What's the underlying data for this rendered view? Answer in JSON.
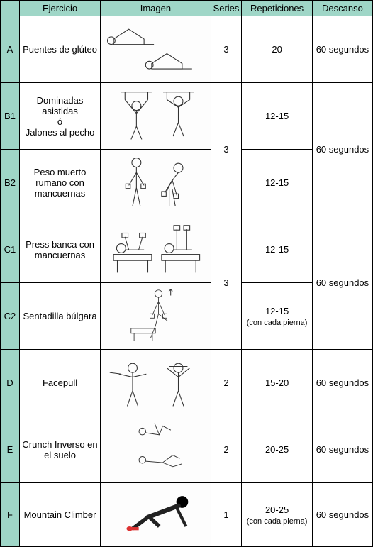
{
  "headers": {
    "letter": "",
    "exercise": "Ejercicio",
    "image": "Imagen",
    "series": "Series",
    "reps": "Repeticiones",
    "rest": "Descanso"
  },
  "colors": {
    "header_bg": "#9fd6c7",
    "border": "#000000",
    "text": "#000000",
    "page_bg": "#ffffff"
  },
  "font": {
    "family": "Arial",
    "size_pt": 10
  },
  "rows": [
    {
      "letter": "A",
      "exercise": "Puentes de glúteo",
      "series": "3",
      "reps": "20",
      "rest": "60 segundos",
      "group_start": false
    },
    {
      "letter": "B1",
      "exercise": "Dominadas asistidas\nó\nJalones al pecho",
      "series": "3",
      "reps": "12-15",
      "rest": "60 segundos",
      "group_start": true,
      "group_span": 2
    },
    {
      "letter": "B2",
      "exercise": "Peso muerto rumano con mancuernas",
      "series": "",
      "reps": "12-15",
      "rest": "",
      "group_start": false,
      "in_group": true
    },
    {
      "letter": "C1",
      "exercise": "Press banca con mancuernas",
      "series": "3",
      "reps": "12-15",
      "rest": "60 segundos",
      "group_start": true,
      "group_span": 2
    },
    {
      "letter": "C2",
      "exercise": "Sentadilla búlgara",
      "series": "",
      "reps": "12-15\n(con cada pierna)",
      "rest": "",
      "group_start": false,
      "in_group": true
    },
    {
      "letter": "D",
      "exercise": "Facepull",
      "series": "2",
      "reps": "15-20",
      "rest": "60 segundos",
      "group_start": false
    },
    {
      "letter": "E",
      "exercise": "Crunch Inverso en el suelo",
      "series": "2",
      "reps": "20-25",
      "rest": "60 segundos",
      "group_start": false
    },
    {
      "letter": "F",
      "exercise": "Mountain Climber",
      "series": "1",
      "reps": "20-25\n(con cada pierna)",
      "rest": "60 segundos",
      "group_start": false
    }
  ]
}
